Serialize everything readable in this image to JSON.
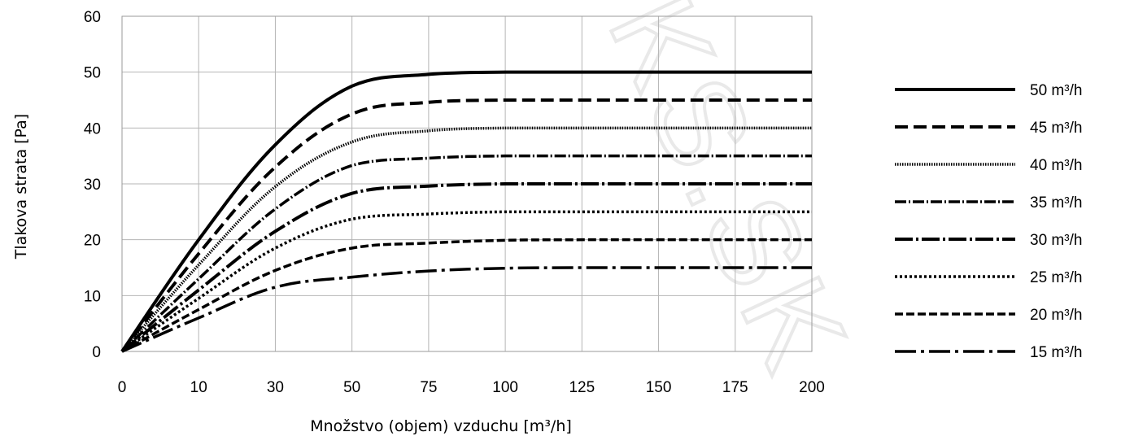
{
  "chart_data": {
    "type": "line",
    "title": "",
    "xlabel": "Množstvo (objem) vzduchu [m³/h]",
    "ylabel": "Tlakova strata [Pa]",
    "x_ticks": [
      "0",
      "10",
      "30",
      "50",
      "75",
      "100",
      "125",
      "150",
      "175",
      "200"
    ],
    "y_ticks": [
      "0",
      "10",
      "20",
      "30",
      "40",
      "50",
      "60"
    ],
    "ylim": [
      0,
      60
    ],
    "grid": true,
    "legend_position": "right",
    "x": [
      "0",
      "10",
      "30",
      "50",
      "75",
      "100",
      "125",
      "150",
      "175",
      "200"
    ],
    "series": [
      {
        "name": "50 m³/h",
        "values": [
          0,
          20,
          37,
          47.5,
          49.6,
          50,
          50,
          50,
          50,
          50
        ],
        "style": "solid"
      },
      {
        "name": "45 m³/h",
        "values": [
          0,
          17.5,
          33,
          42.5,
          44.6,
          45,
          45,
          45,
          45,
          45
        ],
        "style": "dash"
      },
      {
        "name": "40 m³/h",
        "values": [
          0,
          15.5,
          29.5,
          37.5,
          39.5,
          40,
          40,
          40,
          40,
          40
        ],
        "style": "dense-dot"
      },
      {
        "name": "35 m³/h",
        "values": [
          0,
          13,
          25.5,
          33.3,
          34.6,
          35,
          35,
          35,
          35,
          35
        ],
        "style": "dash-dot"
      },
      {
        "name": "30 m³/h",
        "values": [
          0,
          11,
          21.5,
          28.3,
          29.6,
          30,
          30,
          30,
          30,
          30
        ],
        "style": "long-dash-dot"
      },
      {
        "name": "25 m³/h",
        "values": [
          0,
          9.5,
          18.5,
          23.7,
          24.6,
          25,
          25,
          25,
          25,
          25
        ],
        "style": "dotted"
      },
      {
        "name": "20 m³/h",
        "values": [
          0,
          7.5,
          14.5,
          18.5,
          19.4,
          19.9,
          20,
          20,
          20,
          20
        ],
        "style": "short-dash"
      },
      {
        "name": "15 m³/h",
        "values": [
          0,
          6,
          11.5,
          13.3,
          14.4,
          14.9,
          15,
          15,
          15,
          15
        ],
        "style": "dash-dot-long"
      }
    ]
  },
  "watermark": "KS.SK"
}
